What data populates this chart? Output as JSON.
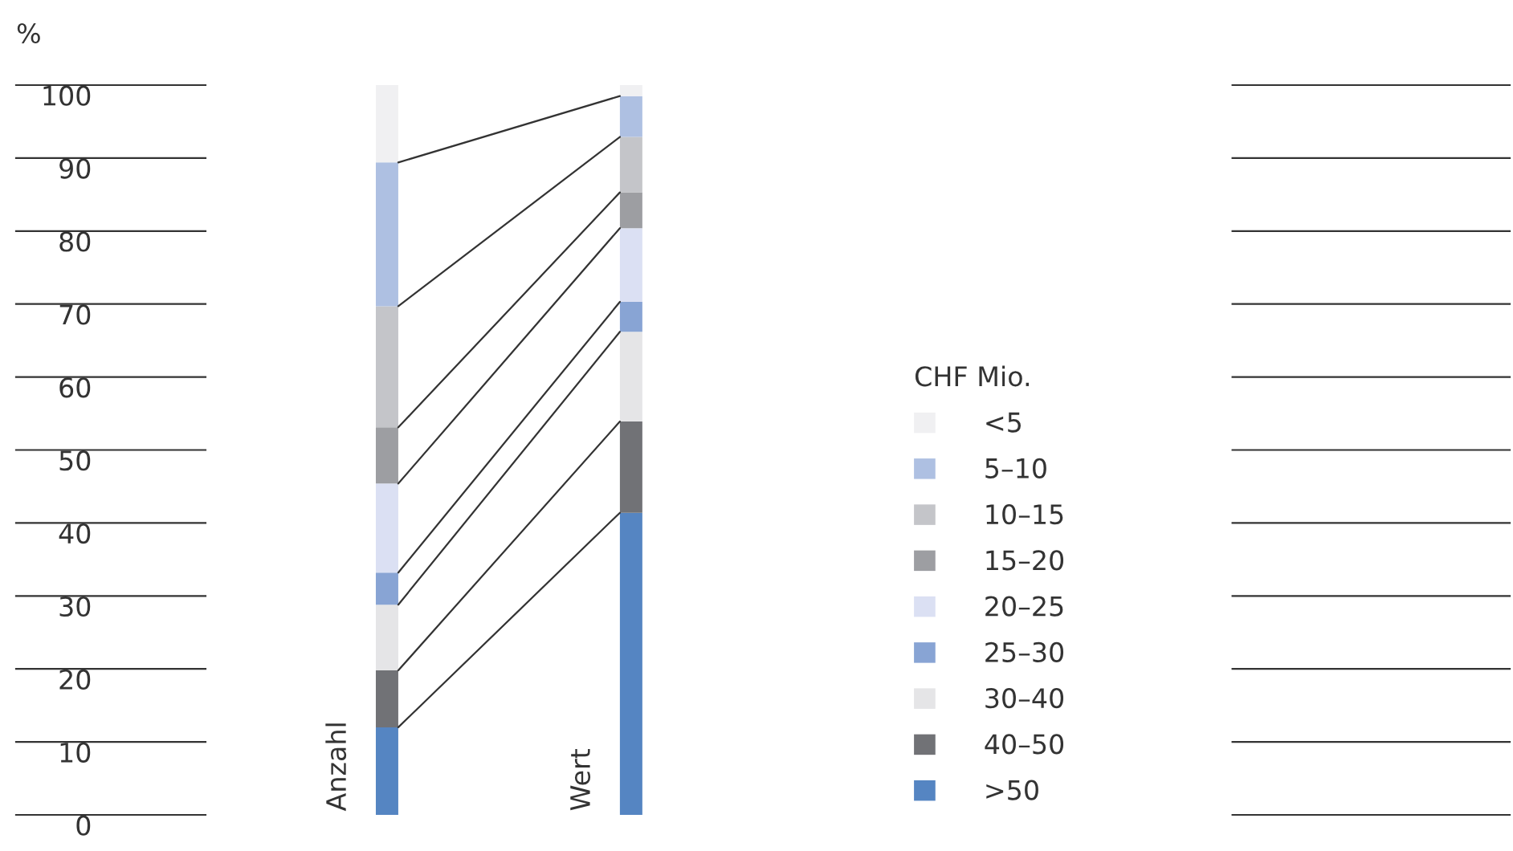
{
  "chart_data": {
    "type": "bar",
    "stacked": true,
    "ylabel": "%",
    "legend_title": "CHF Mio.",
    "legend": "right",
    "categories": [
      "Anzahl",
      "Wert"
    ],
    "series": [
      {
        "name": ">50",
        "color": "#5585c2",
        "values": [
          12.0,
          41.4
        ]
      },
      {
        "name": "40–50",
        "color": "#717276",
        "values": [
          7.8,
          12.5
        ]
      },
      {
        "name": "30–40",
        "color": "#e5e5e7",
        "values": [
          9.0,
          12.3
        ]
      },
      {
        "name": "25–30",
        "color": "#88a4d4",
        "values": [
          4.4,
          4.1
        ]
      },
      {
        "name": "20–25",
        "color": "#dbe0f3",
        "values": [
          12.2,
          10.1
        ]
      },
      {
        "name": "15–20",
        "color": "#9d9ea2",
        "values": [
          7.7,
          4.9
        ]
      },
      {
        "name": "10–15",
        "color": "#c4c5c9",
        "values": [
          16.6,
          7.6
        ]
      },
      {
        "name": "5–10",
        "color": "#aec0e2",
        "values": [
          19.7,
          5.6
        ]
      },
      {
        "name": "<5",
        "color": "#f0f0f2",
        "values": [
          10.6,
          1.5
        ]
      }
    ],
    "ylim": [
      0,
      100
    ],
    "yticks": [
      0,
      10,
      20,
      30,
      40,
      50,
      60,
      70,
      80,
      90,
      100
    ],
    "grid": "y"
  }
}
